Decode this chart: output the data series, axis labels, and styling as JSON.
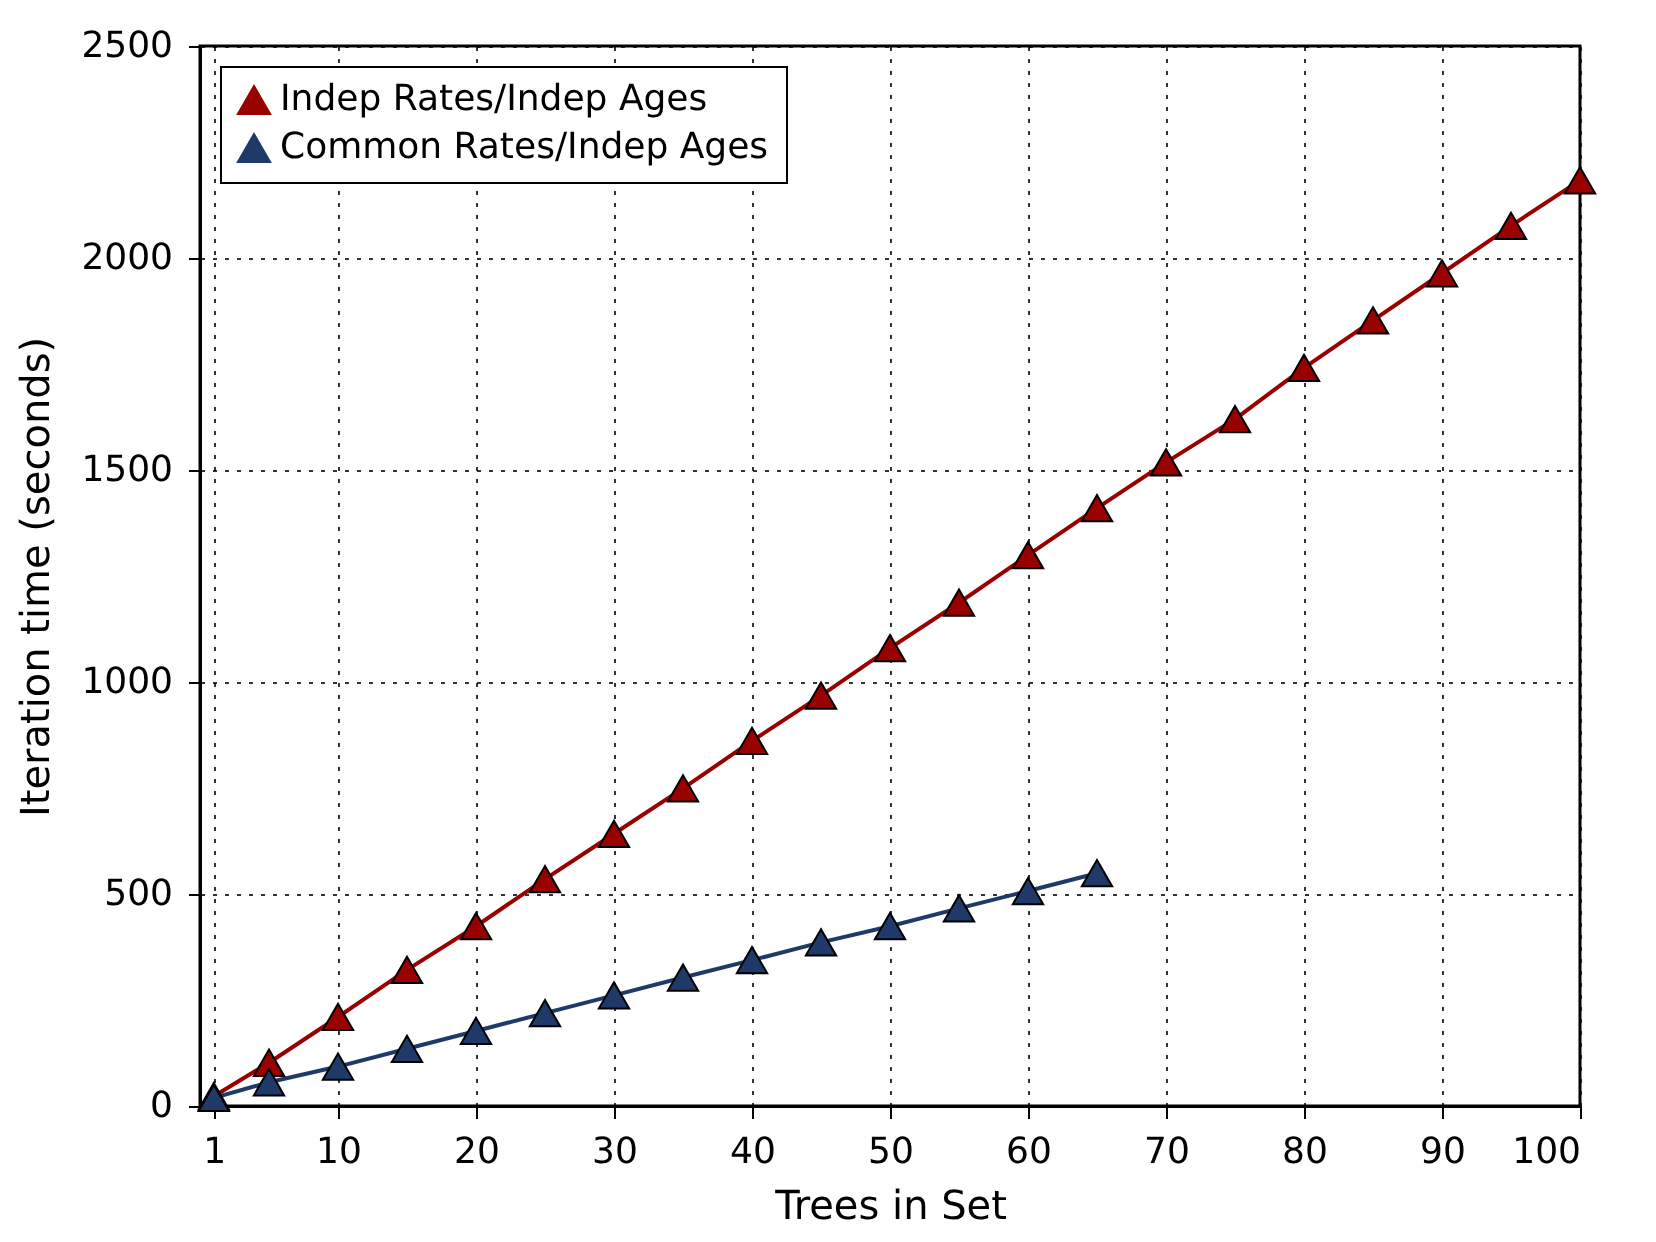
{
  "chart_data": {
    "type": "line",
    "xlabel": "Trees in Set",
    "ylabel": "Iteration time (seconds)",
    "x": [
      1,
      5,
      10,
      15,
      20,
      25,
      30,
      35,
      40,
      45,
      50,
      55,
      60,
      65,
      70,
      75,
      80,
      85,
      90,
      95,
      100
    ],
    "series": [
      {
        "name": "Indep Rates/Indep Ages",
        "color": "#990000",
        "values": [
          23,
          102,
          210,
          321,
          424,
          535,
          642,
          749,
          861,
          968,
          1080,
          1187,
          1299,
          1410,
          1518,
          1620,
          1741,
          1853,
          1964,
          2076,
          2183
        ]
      },
      {
        "name": "Common Rates/Indep Ages",
        "color": "#1f3a68",
        "values": [
          19,
          56,
          93,
          135,
          177,
          219,
          261,
          303,
          344,
          386,
          424,
          466,
          507,
          549,
          null,
          null,
          null,
          null,
          null,
          null,
          null
        ]
      }
    ],
    "xlim": [
      0,
      100
    ],
    "xticks": [
      1,
      10,
      20,
      30,
      40,
      50,
      60,
      70,
      80,
      90,
      100
    ],
    "ylim": [
      0,
      2500
    ],
    "yticks": [
      0,
      500,
      1000,
      1500,
      2000,
      2500
    ],
    "grid": true,
    "legend": "top left",
    "marker": "triangle",
    "line_style": "solid"
  }
}
